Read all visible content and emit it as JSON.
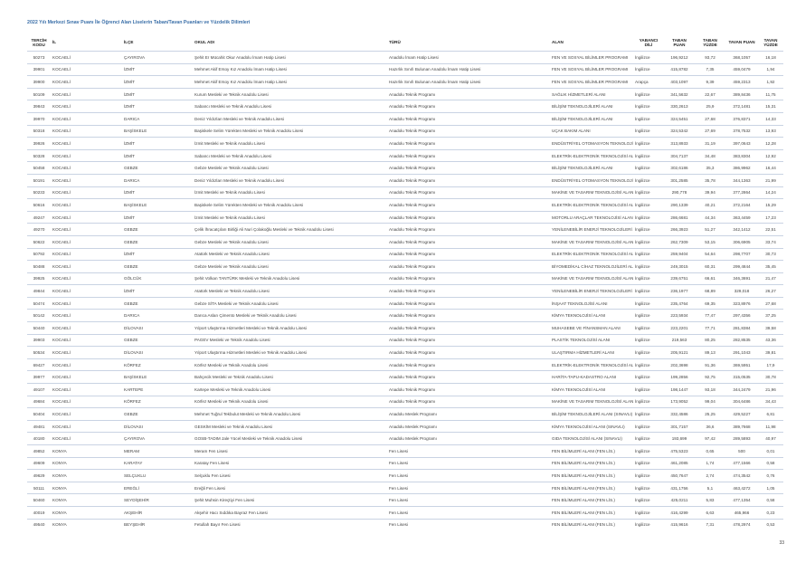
{
  "title": "2022 Yılı Merkezi Sınav Puanı İle Öğrenci Alan Liselerin Taban/Tavan Puanları ve Yüzdelik Dilimleri",
  "page_number": "33",
  "columns": [
    "TERCİH KODU",
    "İL",
    "İLÇE",
    "OKUL ADI",
    "TÜRÜ",
    "ALAN",
    "YABANCI DİLİ",
    "TABAN PUAN",
    "TABAN YÜZDE",
    "TAVAN PUAN",
    "TAVAN YÜZDE"
  ],
  "rows": [
    [
      "50273",
      "KOCAELİ",
      "ÇAYIROVA",
      "Şehit Er Mücahit Okur Anadolu İmam Hatip Lisesi",
      "Anadolu İmam Hatip Lisesi",
      "FEN VE SOSYAL BİLİMLER PROGRAMI",
      "İngilizce",
      "196,9212",
      "93,72",
      "368,1057",
      "16,18"
    ],
    [
      "39901",
      "KOCAELİ",
      "İZMİT",
      "Mehmet Akif Ersoy Kız Anadolu İmam Hatip Lisesi",
      "Hazırlık Sınıfı Bulunan Anadolu İmam Hatip Lisesi",
      "FEN VE SOSYAL BİLİMLER PROGRAMI",
      "İngilizce",
      "415,8782",
      "7,35",
      "459,0479",
      "1,94"
    ],
    [
      "39900",
      "KOCAELİ",
      "İZMİT",
      "Mehmet Akif Ersoy Kız Anadolu İmam Hatip Lisesi",
      "Hazırlık Sınıfı Bulunan Anadolu İmam Hatip Lisesi",
      "FEN VE SOSYAL BİLİMLER PROGRAMI",
      "Arapça",
      "403,1097",
      "9,39",
      "459,2313",
      "1,92"
    ],
    [
      "50109",
      "KOCAELİ",
      "İZMİT",
      "Kurum Mesleki ve Teknik Anadolu Lisesi",
      "Anadolu Teknik Programı",
      "SAĞLIK HİZMETLERİ ALANI",
      "İngilizce",
      "341,5632",
      "22,67",
      "389,8436",
      "11,75"
    ],
    [
      "39843",
      "KOCAELİ",
      "İZMİT",
      "Sabancı Mesleki ve Teknik Anadolu Lisesi",
      "Anadolu Teknik Programı",
      "BİLİŞİM TEKNOLOJİLERİ ALANI",
      "İngilizce",
      "330,2613",
      "25,9",
      "372,1481",
      "15,31"
    ],
    [
      "39970",
      "KOCAELİ",
      "DARICA",
      "Deniz Yıldızları Mesleki ve Teknik Anadolu Lisesi",
      "Anadolu Teknik Programı",
      "BİLİŞİM TEKNOLOJİLERİ ALANI",
      "İngilizce",
      "324,5451",
      "27,68",
      "376,8371",
      "14,33"
    ],
    [
      "50318",
      "KOCAELİ",
      "BAŞİSKELE",
      "Başiskele Selim Yürekten Mesleki ve Teknik Anadolu Lisesi",
      "Anadolu Teknik Programı",
      "UÇAK BAKIM ALANI",
      "İngilizce",
      "324,5342",
      "27,69",
      "378,7532",
      "13,93"
    ],
    [
      "39926",
      "KOCAELİ",
      "İZMİT",
      "İzmit Mesleki ve Teknik Anadolu Lisesi",
      "Anadolu Teknik Programı",
      "ENDÜSTRİYEL OTOMASYON TEKNOLOJİLERİ ALANI",
      "İngilizce",
      "313,8933",
      "31,19",
      "397,0643",
      "12,28"
    ],
    [
      "50328",
      "KOCAELİ",
      "İZMİT",
      "Sabancı Mesleki ve Teknik Anadolu Lisesi",
      "Anadolu Teknik Programı",
      "ELEKTRİK-ELEKTRONİK TEKNOLOJİSİ ALANI",
      "İngilizce",
      "304,7137",
      "34,48",
      "383,8304",
      "12,92"
    ],
    [
      "50458",
      "KOCAELİ",
      "GEBZE",
      "Gebze Mesleki ve Teknik Anadolu Lisesi",
      "Anadolu Teknik Programı",
      "BİLİŞİM TEKNOLOJİLERİ ALANI",
      "İngilizce",
      "302,6186",
      "35,3",
      "386,9962",
      "16,44"
    ],
    [
      "50191",
      "KOCAELİ",
      "DARICA",
      "Deniz Yıldızları Mesleki ve Teknik Anadolu Lisesi",
      "Anadolu Teknik Programı",
      "ENDÜSTRİYEL OTOMASYON TEKNOLOJİLERİ ALANI",
      "İngilizce",
      "301,2585",
      "35,78",
      "344,1363",
      "21,99"
    ],
    [
      "50233",
      "KOCAELİ",
      "İZMİT",
      "İzmit Mesleki ve Teknik Anadolu Lisesi",
      "Anadolu Teknik Programı",
      "MAKİNE VE TASARIM TEKNOLOJİSİ ALANI",
      "İngilizce",
      "290,778",
      "39,94",
      "377,2864",
      "14,24"
    ],
    [
      "50616",
      "KOCAELİ",
      "BAŞİSKELE",
      "Başiskele Selim Yürekten Mesleki ve Teknik Anadolu Lisesi",
      "Anadolu Teknik Programı",
      "ELEKTRİK-ELEKTRONİK TEKNOLOJİSİ ALANI",
      "İngilizce",
      "290,1339",
      "40,21",
      "372,2164",
      "15,29"
    ],
    [
      "49247",
      "KOCAELİ",
      "İZMİT",
      "İzmit Mesleki ve Teknik Anadolu Lisesi",
      "Anadolu Teknik Programı",
      "MOTORLU ARAÇLAR TEKNOLOJİSİ ALANI",
      "İngilizce",
      "286,6681",
      "44,34",
      "363,4459",
      "17,23"
    ],
    [
      "49270",
      "KOCAELİ",
      "GEBZE",
      "Çelik İhracatçıları Birliği Ali Nuri Çolakoğlu Mesleki ve Teknik Anadolu Lisesi",
      "Anadolu Teknik Programı",
      "YENİLENEBİLİR ENERJİ TEKNOLOJİLERİ ALANI",
      "İngilizce",
      "266,3923",
      "51,27",
      "342,1412",
      "22,51"
    ],
    [
      "50622",
      "KOCAELİ",
      "GEBZE",
      "Gebze Mesleki ve Teknik Anadolu Lisesi",
      "Anadolu Teknik Programı",
      "MAKİNE VE TASARIM TEKNOLOJİSİ ALANI",
      "İngilizce",
      "262,7309",
      "53,15",
      "306,6905",
      "33,74"
    ],
    [
      "50792",
      "KOCAELİ",
      "İZMİT",
      "Atatürk Mesleki ve Teknik Anadolu Lisesi",
      "Anadolu Teknik Programı",
      "ELEKTRİK-ELEKTRONİK TEKNOLOJİSİ ALANI",
      "İngilizce",
      "259,9404",
      "54,64",
      "298,7707",
      "30,73"
    ],
    [
      "50488",
      "KOCAELİ",
      "GEBZE",
      "Gebze Mesleki ve Teknik Anadolu Lisesi",
      "Anadolu Teknik Programı",
      "BİYOMEDİKAL CİHAZ TEKNOLOJİLERİ ALANI",
      "İngilizce",
      "249,3015",
      "60,31",
      "299,4844",
      "35,45"
    ],
    [
      "39925",
      "KOCAELİ",
      "GÖLCÜK",
      "Şehit Volkan TANTÜRK Mesleki ve Teknik Anadolu Lisesi",
      "Anadolu Teknik Programı",
      "MAKİNE VE TASARIM TEKNOLOJİSİ ALANI",
      "İngilizce",
      "239,6751",
      "66,61",
      "346,3691",
      "21,47"
    ],
    [
      "49844",
      "KOCAELİ",
      "İZMİT",
      "Atatürk Mesleki ve Teknik Anadolu Lisesi",
      "Anadolu Teknik Programı",
      "YENİLENEBİLİR ENERJİ TEKNOLOJİLERİ ALANI",
      "İngilizce",
      "236,1977",
      "68,89",
      "329,018",
      "26,27"
    ],
    [
      "50474",
      "KOCAELİ",
      "GEBZE",
      "Gebze SİTA Mesleki ve Teknik Anadolu Lisesi",
      "Anadolu Teknik Programı",
      "İNŞAAT TEKNOLOJİSİ ALANI",
      "İngilizce",
      "235,4764",
      "69,35",
      "323,8976",
      "27,68"
    ],
    [
      "50142",
      "KOCAELİ",
      "DARICA",
      "Darıca Aslan Çimento Mesleki ve Teknik Anadolu Lisesi",
      "Anadolu Teknik Programı",
      "KİMYA TEKNOLOJİSİ ALANI",
      "İngilizce",
      "223,5934",
      "77,47",
      "297,4356",
      "37,25"
    ],
    [
      "50440",
      "KOCAELİ",
      "DİLOVASI",
      "Yılport Ulaştırma Hizmetleri Mesleki ve Teknik Anadolu Lisesi",
      "Anadolu Teknik Programı",
      "MUHASEBE VE FİNANSMAN ALANI",
      "İngilizce",
      "223,2201",
      "77,71",
      "281,8384",
      "39,58"
    ],
    [
      "39903",
      "KOCAELİ",
      "GEBZE",
      "PAGEV Mesleki ve Teknik Anadolu Lisesi",
      "Anadolu Teknik Programı",
      "PLASTİK TEKNOLOJİSİ ALANI",
      "İngilizce",
      "219,563",
      "80,25",
      "282,8535",
      "43,36"
    ],
    [
      "50534",
      "KOCAELİ",
      "DİLOVASI",
      "Yılport Ulaştırma Hizmetleri Mesleki ve Teknik Anadolu Lisesi",
      "Anadolu Teknik Programı",
      "ULAŞTIRMA HİZMETLERİ ALANI",
      "İngilizce",
      "205,9121",
      "89,13",
      "291,1043",
      "39,81"
    ],
    [
      "69427",
      "KOCAELİ",
      "KÖRFEZ",
      "Körfez Mesleki ve Teknik Anadolu Lisesi",
      "Anadolu Teknik Programı",
      "ELEKTRİK-ELEKTRONİK TEKNOLOJİSİ ALANI",
      "İngilizce",
      "202,3698",
      "91,36",
      "369,5951",
      "17,9"
    ],
    [
      "39977",
      "KOCAELİ",
      "BAŞİSKELE",
      "Bahçecik Mesleki ve Teknik Anadolu Lisesi",
      "Anadolu Teknik Programı",
      "HARİTA-TAPU-KADASTRO ALANI",
      "İngilizce",
      "199,2856",
      "92,75",
      "315,0535",
      "30,78"
    ],
    [
      "49107",
      "KOCAELİ",
      "KARTEPE",
      "Kartepe Mesleki ve Teknik Anadolu Lisesi",
      "Anadolu Teknik Programı",
      "KİMYA TEKNOLOJİSİ ALANI",
      "İngilizce",
      "198,1447",
      "93,18",
      "344,2479",
      "21,96"
    ],
    [
      "49684",
      "KOCAELİ",
      "KÖRFEZ",
      "Körfez Mesleki ve Teknik Anadolu Lisesi",
      "Anadolu Teknik Programı",
      "MAKİNE VE TASARIM TEKNOLOJİSİ ALANI",
      "İngilizce",
      "173,9052",
      "99,04",
      "304,6486",
      "34,43"
    ],
    [
      "50404",
      "KOCAELİ",
      "GEBZE",
      "Mehmet Tuğrul Tekbulut Mesleki ve Teknik Anadolu Lisesi",
      "Anadolu Meslek Programı",
      "BİLİŞİM TEKNOLOJİLERİ ALANI (SINAVLI)",
      "İngilizce",
      "332,4586",
      "25,25",
      "429,5227",
      "6,81"
    ],
    [
      "49481",
      "KOCAELİ",
      "DİLOVASI",
      "GESKİM Mesleki ve Teknik Anadolu Lisesi",
      "Anadolu Meslek Programı",
      "KİMYA TEKNOLOJİSİ ALANI (SINAVLI)",
      "İngilizce",
      "301,7157",
      "36,6",
      "389,7668",
      "11,98"
    ],
    [
      "40180",
      "KOCAELİ",
      "ÇAYIROVA",
      "GOSB-TADIM Jale Yücel Mesleki ve Teknik Anadolu Lisesi",
      "Anadolu Meslek Programı",
      "GIDA TEKNOLOJİSİ ALANI (SINAVLI)",
      "İngilizce",
      "193,699",
      "97,42",
      "289,5893",
      "40,97"
    ],
    [
      "49852",
      "KONYA",
      "MERAM",
      "Meram Fen Lisesi",
      "Fen Lisesi",
      "FEN BİLİMLERİ ALANI (FEN LİS.)",
      "İngilizce",
      "475,5323",
      "0,65",
      "500",
      "0,01"
    ],
    [
      "49609",
      "KONYA",
      "KARATAY",
      "Karatay Fen Lisesi",
      "Fen Lisesi",
      "FEN BİLİMLERİ ALANI (FEN LİS.)",
      "İngilizce",
      "461,2085",
      "1,74",
      "477,1566",
      "0,58"
    ],
    [
      "49629",
      "KONYA",
      "SELÇUKLU",
      "Selçuklu Fen Lisesi",
      "Fen Lisesi",
      "FEN BİLİMLERİ ALANI (FEN LİS.)",
      "İngilizce",
      "450,7647",
      "2,74",
      "474,3542",
      "0,76"
    ],
    [
      "50111",
      "KONYA",
      "EREĞLİ",
      "Ereğli Fen Lisesi",
      "Fen Lisesi",
      "FEN BİLİMLERİ ALANI (FEN LİS.)",
      "İngilizce",
      "431,1756",
      "5,1",
      "463,4272",
      "1,05"
    ],
    [
      "50460",
      "KONYA",
      "SEYDİŞEHİR",
      "Şehit Muhsin Kireçtiyi Fen Lisesi",
      "Fen Lisesi",
      "FEN BİLİMLERİ ALANI (FEN LİS.)",
      "İngilizce",
      "425,0211",
      "5,83",
      "477,1354",
      "0,58"
    ],
    [
      "40019",
      "KONYA",
      "AKŞEHİR",
      "Akşehir Hacı Sıddıka Bayraz Fen Lisesi",
      "Fen Lisesi",
      "FEN BİLİMLERİ ALANI (FEN LİS.)",
      "İngilizce",
      "416,4299",
      "6,63",
      "465,966",
      "0,23"
    ],
    [
      "49540",
      "KONYA",
      "BEYŞEHİR",
      "Fetullah Bayır Fen Lisesi",
      "Fen Lisesi",
      "FEN BİLİMLERİ ALANI (FEN LİS.)",
      "İngilizce",
      "415,9616",
      "7,31",
      "478,2974",
      "0,53"
    ]
  ]
}
